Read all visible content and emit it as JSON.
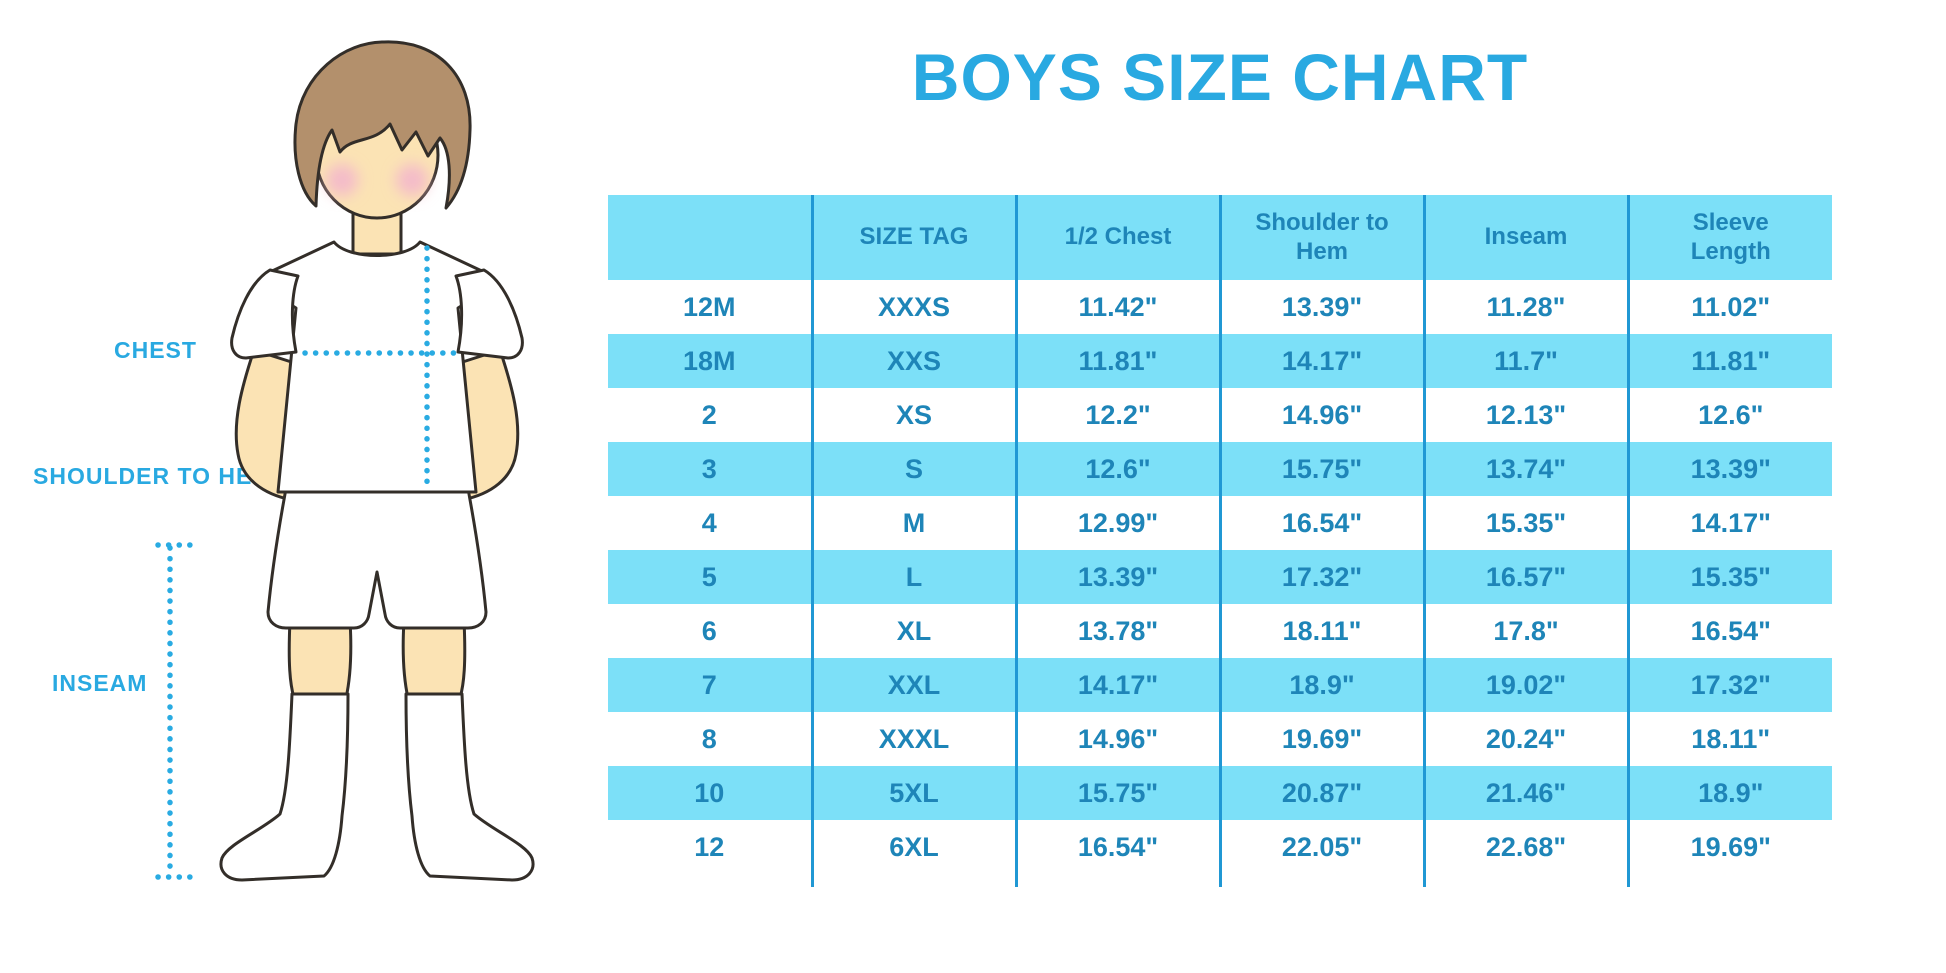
{
  "page": {
    "title": "BOYS SIZE CHART"
  },
  "measurement_labels": {
    "chest": "CHEST",
    "shoulder_to_hem": "SHOULDER TO HEM",
    "inseam": "INSEAM"
  },
  "colors": {
    "title_blue": "#29A9E1",
    "table_text_blue": "#1E85B8",
    "stripe_light_blue": "#7CE0F8",
    "grid_line_blue": "#2098D4",
    "dot_line_blue": "#29ABE2",
    "skin": "#FBE3B4",
    "hair_brown": "#B3906C",
    "cheek_pink": "#F4BCC9",
    "outline": "#332E29"
  },
  "chart_data": {
    "type": "table",
    "title": "BOYS SIZE CHART",
    "columns": [
      "",
      "SIZE TAG",
      "1/2 Chest",
      "Shoulder to Hem",
      "Inseam",
      "Sleeve Length"
    ],
    "rows": [
      [
        "12M",
        "XXXS",
        "11.42\"",
        "13.39\"",
        "11.28\"",
        "11.02\""
      ],
      [
        "18M",
        "XXS",
        "11.81\"",
        "14.17\"",
        "11.7\"",
        "11.81\""
      ],
      [
        "2",
        "XS",
        "12.2\"",
        "14.96\"",
        "12.13\"",
        "12.6\""
      ],
      [
        "3",
        "S",
        "12.6\"",
        "15.75\"",
        "13.74\"",
        "13.39\""
      ],
      [
        "4",
        "M",
        "12.99\"",
        "16.54\"",
        "15.35\"",
        "14.17\""
      ],
      [
        "5",
        "L",
        "13.39\"",
        "17.32\"",
        "16.57\"",
        "15.35\""
      ],
      [
        "6",
        "XL",
        "13.78\"",
        "18.11\"",
        "17.8\"",
        "16.54\""
      ],
      [
        "7",
        "XXL",
        "14.17\"",
        "18.9\"",
        "19.02\"",
        "17.32\""
      ],
      [
        "8",
        "XXXL",
        "14.96\"",
        "19.69\"",
        "20.24\"",
        "18.11\""
      ],
      [
        "10",
        "5XL",
        "15.75\"",
        "20.87\"",
        "21.46\"",
        "18.9\""
      ],
      [
        "12",
        "6XL",
        "16.54\"",
        "22.05\"",
        "22.68\"",
        "19.69\""
      ]
    ]
  }
}
